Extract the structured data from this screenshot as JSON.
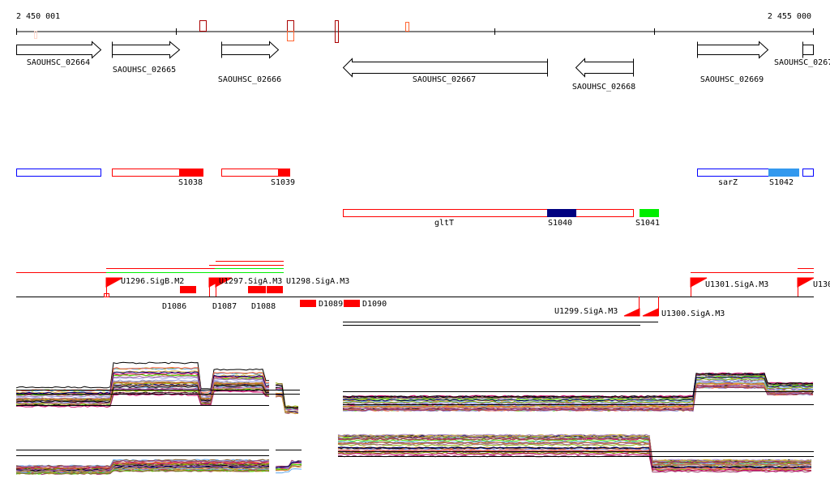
{
  "ruler": {
    "start_label": "2 450 001",
    "end_label": "2 455 000"
  },
  "genes": [
    {
      "label": "SAOUHSC_02664",
      "strand": "+"
    },
    {
      "label": "SAOUHSC_02665",
      "strand": "+"
    },
    {
      "label": "SAOUHSC_02666",
      "strand": "+"
    },
    {
      "label": "SAOUHSC_02667",
      "strand": "-"
    },
    {
      "label": "SAOUHSC_02668",
      "strand": "-"
    },
    {
      "label": "SAOUHSC_02669",
      "strand": "+"
    },
    {
      "label": "SAOUHSC_0267",
      "strand": "+"
    }
  ],
  "segments": {
    "s1038": "S1038",
    "s1039": "S1039",
    "sarz": "sarZ",
    "s1042": "S1042",
    "gltt": "gltT",
    "s1040": "S1040",
    "s1041": "S1041"
  },
  "features": {
    "u1296": "U1296.SigB.M2",
    "d1086": "D1086",
    "u1297": "U1297.SigA.M3",
    "u1298": "U1298.SigA.M3",
    "d1087": "D1087",
    "d1088": "D1088",
    "d1089": "D1089",
    "d1090": "D1090",
    "u1299": "U1299.SigA.M3",
    "u1300": "U1300.SigA.M3",
    "u1301": "U1301.SigA.M3",
    "u130x": "U130"
  },
  "colors": {
    "red": "#ff0000",
    "navy": "#000080",
    "green": "#00ee00",
    "sky": "#3399ee",
    "blue_outline": "#0000ff",
    "dark_red": "#aa0000",
    "orange": "#ff6633"
  }
}
